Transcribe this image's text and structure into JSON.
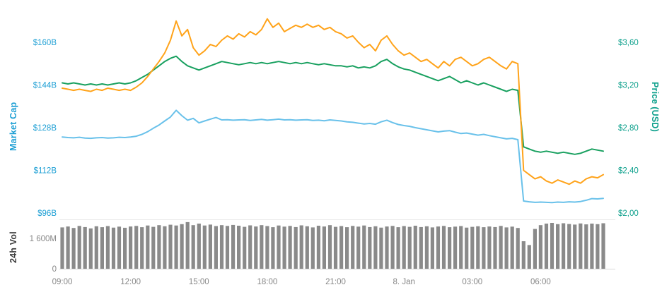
{
  "chart_data": {
    "type": "line",
    "title": "",
    "layout": {
      "background": "#ffffff",
      "grid": "off",
      "legend": "none",
      "volume_panel": "bottom"
    },
    "left_axis": {
      "title": "Market Cap",
      "color": "#1d9fd4",
      "ticks": [
        {
          "value": 160,
          "label": "$160B"
        },
        {
          "value": 144,
          "label": "$144B"
        },
        {
          "value": 128,
          "label": "$128B"
        },
        {
          "value": 112,
          "label": "$112B"
        },
        {
          "value": 96,
          "label": "$96B"
        }
      ]
    },
    "right_axis": {
      "title": "Price (USD)",
      "color": "#0da08c",
      "ticks": [
        {
          "value": 3.6,
          "label": "$3,60"
        },
        {
          "value": 3.2,
          "label": "$3,20"
        },
        {
          "value": 2.8,
          "label": "$2,80"
        },
        {
          "value": 2.4,
          "label": "$2,40"
        },
        {
          "value": 2.0,
          "label": "$2,00"
        }
      ]
    },
    "volume_axis": {
      "title": "24h Vol",
      "color": "#3c3c3c",
      "tick_color": "#878787",
      "ticks": [
        {
          "value": 1600,
          "label": "1 600M"
        },
        {
          "value": 0,
          "label": "0"
        }
      ]
    },
    "x_axis": {
      "start_hour": 9,
      "step_hours": 0.25,
      "tick_color": "#878787",
      "ticks": [
        {
          "hour": 9,
          "label": "09:00"
        },
        {
          "hour": 12,
          "label": "12:00"
        },
        {
          "hour": 15,
          "label": "15:00"
        },
        {
          "hour": 18,
          "label": "18:00"
        },
        {
          "hour": 21,
          "label": "21:00"
        },
        {
          "hour": 24,
          "label": "8. Jan"
        },
        {
          "hour": 27,
          "label": "03:00"
        },
        {
          "hour": 30,
          "label": "06:00"
        }
      ]
    },
    "series": [
      {
        "name": "market-cap-line",
        "axis": "left",
        "color": "#69c1ea",
        "unit": "USD billions",
        "values": [
          124.5,
          124.3,
          124.2,
          124.4,
          124.1,
          124.0,
          124.2,
          124.3,
          124.1,
          124.2,
          124.4,
          124.3,
          124.5,
          124.8,
          125.5,
          126.5,
          127.8,
          129.0,
          130.5,
          132.0,
          134.5,
          132.5,
          130.8,
          131.5,
          129.8,
          130.5,
          131.2,
          131.8,
          130.9,
          131.0,
          130.8,
          130.9,
          131.0,
          130.7,
          130.9,
          131.1,
          130.8,
          131.0,
          131.2,
          130.9,
          131.0,
          130.8,
          130.9,
          131.0,
          130.7,
          130.8,
          130.6,
          130.9,
          130.7,
          130.5,
          130.2,
          130.0,
          129.7,
          129.4,
          129.6,
          129.3,
          130.2,
          130.8,
          129.9,
          129.2,
          128.8,
          128.5,
          128.0,
          127.6,
          127.2,
          126.8,
          126.4,
          126.7,
          126.9,
          126.3,
          125.8,
          126.0,
          125.6,
          125.2,
          125.5,
          125.0,
          124.6,
          124.2,
          123.8,
          124.0,
          123.5,
          100.5,
          100.2,
          100.0,
          100.1,
          100.0,
          99.9,
          100.1,
          100.0,
          100.2,
          100.1,
          100.3,
          100.8,
          101.4,
          101.3,
          101.5
        ]
      },
      {
        "name": "green-price-line",
        "axis": "right",
        "color": "#18a05f",
        "unit": "USD (read on right axis)",
        "values": [
          3.22,
          3.21,
          3.22,
          3.21,
          3.2,
          3.21,
          3.2,
          3.21,
          3.2,
          3.21,
          3.22,
          3.21,
          3.22,
          3.24,
          3.27,
          3.3,
          3.34,
          3.38,
          3.42,
          3.45,
          3.47,
          3.42,
          3.38,
          3.36,
          3.34,
          3.36,
          3.38,
          3.4,
          3.42,
          3.41,
          3.4,
          3.39,
          3.4,
          3.41,
          3.4,
          3.41,
          3.4,
          3.41,
          3.42,
          3.41,
          3.4,
          3.41,
          3.4,
          3.41,
          3.4,
          3.39,
          3.4,
          3.39,
          3.38,
          3.38,
          3.37,
          3.38,
          3.36,
          3.37,
          3.36,
          3.38,
          3.42,
          3.44,
          3.4,
          3.37,
          3.35,
          3.34,
          3.32,
          3.3,
          3.28,
          3.26,
          3.24,
          3.26,
          3.28,
          3.25,
          3.22,
          3.24,
          3.22,
          3.2,
          3.22,
          3.2,
          3.18,
          3.16,
          3.14,
          3.16,
          3.15,
          2.62,
          2.6,
          2.58,
          2.57,
          2.58,
          2.57,
          2.56,
          2.57,
          2.56,
          2.55,
          2.56,
          2.58,
          2.6,
          2.59,
          2.58
        ]
      },
      {
        "name": "price-usd-line",
        "axis": "right",
        "color": "#ffa31a",
        "unit": "USD",
        "values": [
          3.17,
          3.16,
          3.15,
          3.16,
          3.15,
          3.14,
          3.16,
          3.15,
          3.17,
          3.16,
          3.15,
          3.16,
          3.15,
          3.18,
          3.22,
          3.28,
          3.35,
          3.42,
          3.5,
          3.62,
          3.8,
          3.66,
          3.72,
          3.55,
          3.48,
          3.52,
          3.58,
          3.56,
          3.62,
          3.66,
          3.63,
          3.68,
          3.65,
          3.7,
          3.67,
          3.72,
          3.82,
          3.74,
          3.78,
          3.7,
          3.73,
          3.76,
          3.74,
          3.77,
          3.74,
          3.76,
          3.72,
          3.74,
          3.7,
          3.68,
          3.64,
          3.66,
          3.6,
          3.55,
          3.58,
          3.52,
          3.62,
          3.66,
          3.58,
          3.52,
          3.48,
          3.5,
          3.46,
          3.42,
          3.44,
          3.4,
          3.36,
          3.42,
          3.38,
          3.44,
          3.46,
          3.42,
          3.38,
          3.4,
          3.44,
          3.46,
          3.42,
          3.38,
          3.35,
          3.42,
          3.4,
          2.4,
          2.36,
          2.32,
          2.34,
          2.3,
          2.28,
          2.31,
          2.29,
          2.27,
          2.3,
          2.28,
          2.32,
          2.34,
          2.33,
          2.36
        ]
      }
    ],
    "volume": {
      "name": "volume-bars",
      "color": "#8a8a8a",
      "unit": "M",
      "values": [
        2180,
        2230,
        2150,
        2260,
        2200,
        2130,
        2240,
        2190,
        2250,
        2170,
        2220,
        2160,
        2230,
        2260,
        2190,
        2280,
        2210,
        2300,
        2240,
        2320,
        2280,
        2350,
        2460,
        2300,
        2380,
        2280,
        2330,
        2250,
        2300,
        2260,
        2310,
        2270,
        2210,
        2290,
        2230,
        2300,
        2250,
        2190,
        2280,
        2220,
        2260,
        2200,
        2290,
        2240,
        2180,
        2270,
        2230,
        2300,
        2210,
        2250,
        2190,
        2260,
        2220,
        2280,
        2200,
        2240,
        2170,
        2230,
        2260,
        2190,
        2250,
        2210,
        2270,
        2200,
        2240,
        2180,
        2230,
        2260,
        2190,
        2220,
        2250,
        2170,
        2210,
        2240,
        2190,
        2230,
        2200,
        2260,
        2180,
        2220,
        2150,
        1450,
        1250,
        2100,
        2300,
        2380,
        2420,
        2350,
        2400,
        2360,
        2330,
        2390,
        2340,
        2380,
        2350,
        2400
      ]
    }
  }
}
